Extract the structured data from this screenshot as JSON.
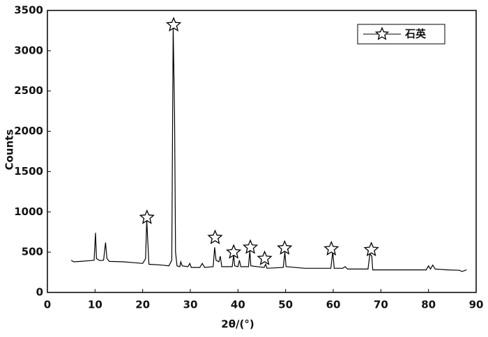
{
  "chart_data": {
    "type": "line",
    "xlabel": "2θ/(°)",
    "ylabel": "Counts",
    "xlim": [
      0,
      90
    ],
    "xticks": [
      0,
      10,
      20,
      30,
      40,
      50,
      60,
      70,
      80,
      90
    ],
    "ylim": [
      0,
      3500
    ],
    "yticks": [
      0,
      500,
      1000,
      1500,
      2000,
      2500,
      3000,
      3500
    ],
    "legend": "upper right",
    "series": [
      {
        "color": "#000000",
        "x": [
          5,
          5.5,
          7,
          9,
          9.8,
          10.1,
          10.3,
          11,
          11.8,
          12.2,
          12.5,
          13,
          16,
          18,
          20,
          20.6,
          20.85,
          21.1,
          21.3,
          24,
          25.5,
          26.1,
          26.4,
          26.7,
          26.9,
          27.2,
          27.8,
          28,
          28.3,
          29.5,
          29.9,
          30.2,
          32,
          32.5,
          33,
          34.8,
          35.1,
          35.4,
          36,
          36.3,
          36.6,
          38.8,
          39.1,
          39.3,
          40,
          40.3,
          40.6,
          42.2,
          42.5,
          42.7,
          45.5,
          45.8,
          46.1,
          49.5,
          49.85,
          50.1,
          54,
          59.5,
          59.9,
          60.2,
          62,
          62.5,
          63,
          67.3,
          67.7,
          68.1,
          68.3,
          75,
          79.5,
          80,
          80.4,
          80.9,
          81.4,
          84,
          86.5,
          87,
          87.5,
          88
        ],
        "values": [
          400,
          380,
          385,
          395,
          400,
          740,
          420,
          395,
          400,
          620,
          420,
          385,
          380,
          370,
          360,
          420,
          900,
          600,
          350,
          340,
          330,
          400,
          3300,
          2200,
          500,
          330,
          320,
          380,
          330,
          320,
          360,
          310,
          310,
          360,
          310,
          320,
          560,
          400,
          380,
          450,
          320,
          320,
          470,
          330,
          320,
          400,
          320,
          320,
          520,
          330,
          310,
          350,
          300,
          310,
          500,
          320,
          300,
          300,
          510,
          300,
          300,
          320,
          290,
          290,
          480,
          450,
          280,
          280,
          280,
          330,
          290,
          340,
          290,
          280,
          275,
          260,
          270,
          280
        ]
      },
      {
        "name": "石英",
        "color": "#000000",
        "marker": "star",
        "x": [
          20.9,
          26.5,
          35.2,
          39.1,
          42.6,
          45.6,
          49.8,
          59.6,
          68
        ],
        "values": [
          930,
          3320,
          680,
          500,
          560,
          420,
          550,
          540,
          530
        ]
      }
    ]
  }
}
